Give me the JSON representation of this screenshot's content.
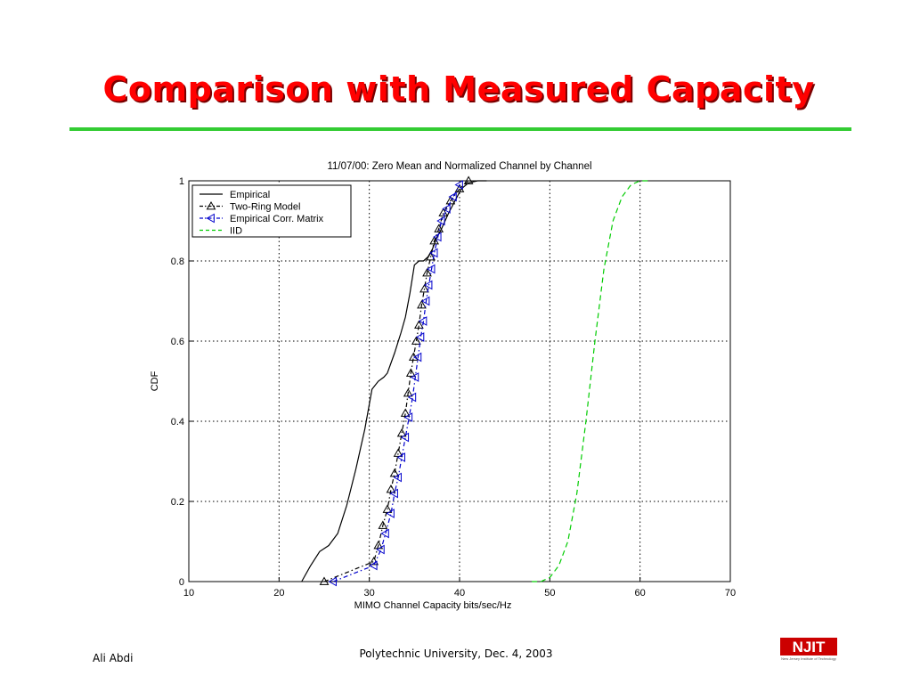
{
  "slide": {
    "title": "Comparison with Measured Capacity",
    "footer_left": "Ali Abdi",
    "footer_center": "Polytechnic University, Dec. 4, 2003",
    "logo_text": "NJIT",
    "logo_subtext": "New Jersey Institute of Technology"
  },
  "colors": {
    "title": "#ff0000",
    "rule": "#33cc33",
    "empirical": "#000000",
    "two_ring": "#000000",
    "corr": "#0000cc",
    "iid": "#00cc00"
  },
  "chart_data": {
    "type": "line",
    "title": "11/07/00: Zero Mean and Normalized Channel by Channel",
    "xlabel": "MIMO Channel Capacity bits/sec/Hz",
    "ylabel": "CDF",
    "xlim": [
      10,
      70
    ],
    "ylim": [
      0,
      1
    ],
    "xticks": [
      10,
      20,
      30,
      40,
      50,
      60,
      70
    ],
    "yticks": [
      0,
      0.2,
      0.4,
      0.6,
      0.8,
      1
    ],
    "grid": true,
    "legend_position": "top-left",
    "series": [
      {
        "name": "Empirical",
        "style": "solid",
        "marker": "none",
        "color": "#000000",
        "x": [
          22.5,
          23.5,
          24.5,
          25.5,
          26.5,
          27.5,
          28.5,
          29.5,
          30.3,
          31.0,
          31.6,
          32.0,
          32.8,
          33.5,
          34.0,
          34.5,
          35.0,
          35.5,
          36.0,
          36.5,
          37.0,
          37.5,
          38.0,
          38.8,
          39.5,
          40.2,
          41.0,
          42.0,
          43.0
        ],
        "y": [
          0.0,
          0.04,
          0.075,
          0.09,
          0.12,
          0.19,
          0.28,
          0.38,
          0.48,
          0.5,
          0.51,
          0.52,
          0.57,
          0.62,
          0.66,
          0.72,
          0.79,
          0.8,
          0.8,
          0.81,
          0.83,
          0.86,
          0.88,
          0.92,
          0.95,
          0.98,
          0.995,
          1.0,
          1.0
        ]
      },
      {
        "name": "Two-Ring Model",
        "style": "dashdot",
        "marker": "triangle-up",
        "color": "#000000",
        "x": [
          25.0,
          30.5,
          31.0,
          31.5,
          32.0,
          32.4,
          32.8,
          33.2,
          33.6,
          34.0,
          34.3,
          34.6,
          34.9,
          35.2,
          35.5,
          35.8,
          36.1,
          36.4,
          36.8,
          37.2,
          37.7,
          38.2,
          39.0,
          40.0,
          41.0
        ],
        "y": [
          0.0,
          0.05,
          0.09,
          0.14,
          0.18,
          0.23,
          0.27,
          0.32,
          0.37,
          0.42,
          0.47,
          0.52,
          0.56,
          0.6,
          0.64,
          0.69,
          0.73,
          0.77,
          0.81,
          0.85,
          0.88,
          0.92,
          0.95,
          0.98,
          1.0
        ]
      },
      {
        "name": "Empirical Corr. Matrix",
        "style": "dashdot",
        "marker": "triangle-left",
        "color": "#0000cc",
        "x": [
          26.0,
          30.5,
          31.3,
          31.8,
          32.4,
          32.8,
          33.2,
          33.6,
          34.0,
          34.4,
          34.8,
          35.1,
          35.4,
          35.7,
          36.0,
          36.3,
          36.6,
          36.9,
          37.2,
          37.6,
          38.0,
          38.6,
          39.3,
          40.0
        ],
        "y": [
          0.0,
          0.04,
          0.08,
          0.12,
          0.17,
          0.22,
          0.26,
          0.31,
          0.36,
          0.41,
          0.46,
          0.51,
          0.56,
          0.61,
          0.65,
          0.7,
          0.74,
          0.78,
          0.82,
          0.86,
          0.9,
          0.93,
          0.96,
          0.99
        ]
      },
      {
        "name": "IID",
        "style": "dashed",
        "marker": "none",
        "color": "#00cc00",
        "x": [
          48.0,
          49.0,
          50.0,
          51.0,
          52.0,
          53.0,
          54.0,
          55.0,
          56.0,
          57.0,
          58.0,
          59.0,
          60.0,
          61.0
        ],
        "y": [
          0.0,
          0.0,
          0.01,
          0.04,
          0.1,
          0.22,
          0.4,
          0.6,
          0.78,
          0.9,
          0.96,
          0.99,
          1.0,
          1.0
        ]
      }
    ]
  }
}
